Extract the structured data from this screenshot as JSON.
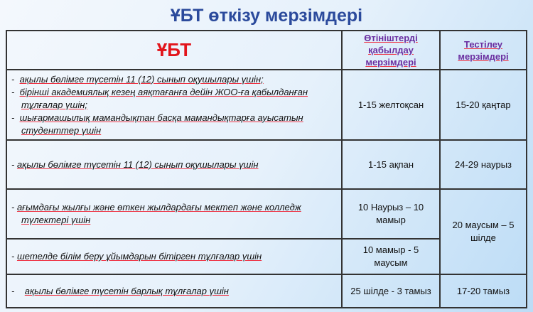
{
  "title": "ҰБТ өткізу мерзімдері",
  "headers": {
    "col1": "ҰБТ",
    "col2": "Өтініштерді қабылдау мерзімдері",
    "col3": "Тестілеу мерзімдері"
  },
  "rows": [
    {
      "lines": [
        "ақылы бөлімге түсетін 11 (12) сынып оқушылары үшін;",
        "бірінші академиялық кезең аяқтағанға дейін ЖОО-ға қабылданған тұлғалар үшін;",
        "шығармашылық мамандықтан басқа мамандықтарға ауысатын студенттер үшін"
      ],
      "applications": "1-15 желтоқсан",
      "testing": "15-20 қаңтар"
    },
    {
      "lines": [
        "ақылы бөлімге түсетін 11 (12) сынып оқушылары үшін"
      ],
      "applications": "1-15 ақпан",
      "testing": "24-29 наурыз"
    },
    {
      "lines": [
        "ағымдағы жылғы және өткен жылдардағы мектеп және колледж түлектері үшін"
      ],
      "applications": "10 Наурыз – 10 мамыр",
      "testing": "20 маусым – 5 шілде"
    },
    {
      "lines": [
        "шетелде білім беру ұйымдарын бітірген тұлғалар үшін"
      ],
      "applications": "10 мамыр - 5 маусым"
    },
    {
      "lines": [
        "ақылы бөлімге түсетін барлық тұлғалар үшін"
      ],
      "applications": "25 шілде - 3 тамыз",
      "testing": "17-20 тамыз"
    }
  ]
}
